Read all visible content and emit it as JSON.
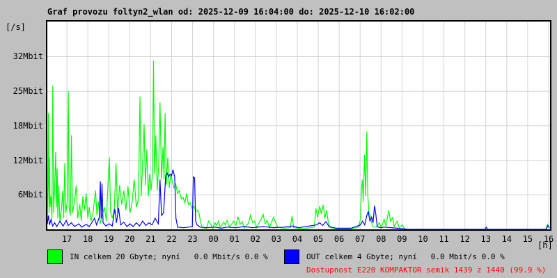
{
  "window": {
    "background": "#c0c0c0"
  },
  "title": "Graf provozu foltyn2_wlan od: 2025-12-09 16:04:00 do: 2025-12-10 16:02:00",
  "y_unit_label": "[/s]",
  "x_unit_label": "[h]",
  "legend": {
    "in": {
      "label": "IN celkem 20 Gbyte; nyní   0.0 Mbit/s 0.0 %",
      "color": "#00ff00"
    },
    "out": {
      "label": "OUT celkem 4 Gbyte; nyní   0.0 Mbit/s 0.0 %",
      "color": "#0000ff"
    },
    "availability": {
      "text": "Dostupnost E220 KOMPAKTOR semik 1439 z 1440 (99.9 %)",
      "color": "#ff0000"
    }
  },
  "chart_data": {
    "type": "line",
    "title": "Graf provozu foltyn2_wlan",
    "x_start": "2025-12-09 16:04:00",
    "x_end": "2025-12-10 16:02:00",
    "x_span_hours": 24,
    "x_first_tick_offset_hours": 0.933,
    "x_tick_labels": [
      "17",
      "18",
      "19",
      "20",
      "21",
      "22",
      "23",
      "00",
      "01",
      "02",
      "03",
      "04",
      "05",
      "06",
      "07",
      "08",
      "09",
      "10",
      "11",
      "12",
      "13",
      "14",
      "15",
      "16"
    ],
    "xlabel": "[h]",
    "ylabel": "[/s]",
    "ylim": [
      0,
      37.6
    ],
    "y_ticks": [
      {
        "label": "6Mbit",
        "value": 6.25
      },
      {
        "label": "12Mbit",
        "value": 12.5
      },
      {
        "label": "18Mbit",
        "value": 18.75
      },
      {
        "label": "25Mbit",
        "value": 25
      },
      {
        "label": "32Mbit",
        "value": 31.25
      }
    ],
    "grid": true,
    "plot_bg": "#ffffff",
    "grid_color": "#d4d4d4",
    "border_color": "#000000",
    "unit": "Mbit/s",
    "x_unit_note": "hours since 16:04",
    "series": [
      {
        "name": "IN",
        "color": "#00ff00",
        "points": [
          [
            0.0,
            2
          ],
          [
            0.03,
            8
          ],
          [
            0.05,
            21
          ],
          [
            0.08,
            3
          ],
          [
            0.1,
            13
          ],
          [
            0.13,
            4
          ],
          [
            0.17,
            6
          ],
          [
            0.22,
            2
          ],
          [
            0.26,
            26
          ],
          [
            0.3,
            3
          ],
          [
            0.36,
            9
          ],
          [
            0.4,
            14
          ],
          [
            0.44,
            4
          ],
          [
            0.47,
            11
          ],
          [
            0.5,
            2
          ],
          [
            0.55,
            8
          ],
          [
            0.6,
            1.2
          ],
          [
            0.68,
            4
          ],
          [
            0.73,
            7
          ],
          [
            0.78,
            2
          ],
          [
            0.83,
            12
          ],
          [
            0.88,
            3
          ],
          [
            0.95,
            5
          ],
          [
            1.0,
            25
          ],
          [
            1.04,
            4
          ],
          [
            1.1,
            2.5
          ],
          [
            1.15,
            17
          ],
          [
            1.2,
            3
          ],
          [
            1.3,
            5
          ],
          [
            1.38,
            8
          ],
          [
            1.45,
            2
          ],
          [
            1.55,
            4.5
          ],
          [
            1.62,
            1.5
          ],
          [
            1.7,
            6
          ],
          [
            1.78,
            3.5
          ],
          [
            1.85,
            6.5
          ],
          [
            1.93,
            2
          ],
          [
            2.0,
            4
          ],
          [
            2.08,
            1.5
          ],
          [
            2.18,
            3
          ],
          [
            2.3,
            7
          ],
          [
            2.37,
            2.5
          ],
          [
            2.44,
            5
          ],
          [
            2.52,
            1
          ],
          [
            2.62,
            2.5
          ],
          [
            2.72,
            4
          ],
          [
            2.82,
            1.5
          ],
          [
            2.9,
            8.5
          ],
          [
            2.96,
            13
          ],
          [
            3.02,
            3
          ],
          [
            3.1,
            2
          ],
          [
            3.2,
            4
          ],
          [
            3.28,
            12
          ],
          [
            3.35,
            3
          ],
          [
            3.45,
            8
          ],
          [
            3.55,
            4.5
          ],
          [
            3.65,
            7
          ],
          [
            3.75,
            3.5
          ],
          [
            3.85,
            7.8
          ],
          [
            3.95,
            3
          ],
          [
            4.05,
            5
          ],
          [
            4.15,
            9
          ],
          [
            4.25,
            4
          ],
          [
            4.35,
            5.5
          ],
          [
            4.42,
            24
          ],
          [
            4.48,
            6
          ],
          [
            4.55,
            12
          ],
          [
            4.62,
            19
          ],
          [
            4.68,
            8
          ],
          [
            4.75,
            14.5
          ],
          [
            4.82,
            6
          ],
          [
            4.88,
            10
          ],
          [
            4.95,
            7
          ],
          [
            5.02,
            10
          ],
          [
            5.07,
            30.5
          ],
          [
            5.12,
            10
          ],
          [
            5.18,
            17
          ],
          [
            5.25,
            7
          ],
          [
            5.32,
            12
          ],
          [
            5.38,
            23
          ],
          [
            5.45,
            9
          ],
          [
            5.52,
            15
          ],
          [
            5.57,
            9
          ],
          [
            5.62,
            21
          ],
          [
            5.68,
            8
          ],
          [
            5.75,
            13
          ],
          [
            5.82,
            7.5
          ],
          [
            5.9,
            10
          ],
          [
            5.97,
            8.5
          ],
          [
            6.05,
            7.5
          ],
          [
            6.13,
            8.2
          ],
          [
            6.22,
            6.5
          ],
          [
            6.3,
            7
          ],
          [
            6.4,
            5.5
          ],
          [
            6.48,
            5.8
          ],
          [
            6.57,
            4.8
          ],
          [
            6.65,
            6.5
          ],
          [
            6.73,
            4.5
          ],
          [
            6.82,
            4.8
          ],
          [
            6.9,
            3.8
          ],
          [
            7.0,
            4.2
          ],
          [
            7.08,
            3.2
          ],
          [
            7.17,
            3.5
          ],
          [
            7.25,
            2.8
          ],
          [
            7.32,
            1.2
          ],
          [
            7.4,
            0.3
          ],
          [
            7.6,
            0.2
          ],
          [
            7.7,
            1.5
          ],
          [
            7.8,
            0.9
          ],
          [
            7.9,
            0.2
          ],
          [
            8.0,
            1.2
          ],
          [
            8.08,
            0.7
          ],
          [
            8.17,
            1.5
          ],
          [
            8.25,
            0.3
          ],
          [
            8.42,
            1.3
          ],
          [
            8.5,
            0.8
          ],
          [
            8.58,
            1.6
          ],
          [
            8.7,
            0.4
          ],
          [
            8.9,
            1.5
          ],
          [
            9.0,
            0.7
          ],
          [
            9.1,
            2.3
          ],
          [
            9.2,
            0.9
          ],
          [
            9.3,
            1.4
          ],
          [
            9.4,
            0.2
          ],
          [
            9.6,
            1.1
          ],
          [
            9.7,
            2.6
          ],
          [
            9.8,
            1.2
          ],
          [
            9.9,
            1.5
          ],
          [
            10.0,
            0.3
          ],
          [
            10.2,
            1.8
          ],
          [
            10.3,
            2.7
          ],
          [
            10.4,
            1.0
          ],
          [
            10.5,
            1.6
          ],
          [
            10.6,
            0.3
          ],
          [
            10.8,
            2.2
          ],
          [
            10.9,
            1.2
          ],
          [
            11.0,
            0.4
          ],
          [
            11.3,
            0.2
          ],
          [
            11.6,
            0.3
          ],
          [
            11.68,
            2.4
          ],
          [
            11.76,
            0.3
          ],
          [
            12.2,
            0.1
          ],
          [
            12.75,
            0.4
          ],
          [
            12.82,
            3.8
          ],
          [
            12.9,
            2.2
          ],
          [
            13.0,
            4.2
          ],
          [
            13.08,
            2.8
          ],
          [
            13.17,
            4.4
          ],
          [
            13.25,
            2.0
          ],
          [
            13.33,
            3.5
          ],
          [
            13.42,
            1.2
          ],
          [
            13.5,
            0.3
          ],
          [
            13.8,
            0.1
          ],
          [
            14.5,
            0.1
          ],
          [
            14.88,
            0.4
          ],
          [
            14.95,
            2.0
          ],
          [
            15.0,
            7.5
          ],
          [
            15.04,
            9.0
          ],
          [
            15.08,
            5.0
          ],
          [
            15.14,
            13.5
          ],
          [
            15.2,
            6.0
          ],
          [
            15.25,
            17.7
          ],
          [
            15.3,
            6.0
          ],
          [
            15.36,
            3.0
          ],
          [
            15.44,
            2.2
          ],
          [
            15.52,
            0.5
          ],
          [
            15.7,
            0.4
          ],
          [
            15.85,
            1.2
          ],
          [
            15.95,
            0.3
          ],
          [
            16.08,
            1.8
          ],
          [
            16.16,
            0.6
          ],
          [
            16.3,
            3.4
          ],
          [
            16.38,
            1.5
          ],
          [
            16.48,
            2.1
          ],
          [
            16.56,
            0.5
          ],
          [
            16.7,
            1.5
          ],
          [
            16.8,
            0.3
          ],
          [
            16.95,
            0.8
          ],
          [
            17.05,
            0.1
          ],
          [
            17.2,
            0
          ],
          [
            23.8,
            0
          ],
          [
            23.88,
            0.9
          ],
          [
            23.97,
            0.2
          ]
        ]
      },
      {
        "name": "OUT",
        "color": "#0000ff",
        "points": [
          [
            0.0,
            1.0
          ],
          [
            0.05,
            2.5
          ],
          [
            0.1,
            0.8
          ],
          [
            0.18,
            1.8
          ],
          [
            0.25,
            0.6
          ],
          [
            0.35,
            1.2
          ],
          [
            0.45,
            0.5
          ],
          [
            0.6,
            1.5
          ],
          [
            0.75,
            0.6
          ],
          [
            0.9,
            1.6
          ],
          [
            1.0,
            0.7
          ],
          [
            1.15,
            1.2
          ],
          [
            1.3,
            0.5
          ],
          [
            1.5,
            1.0
          ],
          [
            1.65,
            0.4
          ],
          [
            1.85,
            0.9
          ],
          [
            2.0,
            0.5
          ],
          [
            2.15,
            1.4
          ],
          [
            2.25,
            2.0
          ],
          [
            2.35,
            0.8
          ],
          [
            2.48,
            2.2
          ],
          [
            2.53,
            8.7
          ],
          [
            2.57,
            2.0
          ],
          [
            2.61,
            8.3
          ],
          [
            2.66,
            1.2
          ],
          [
            2.8,
            0.6
          ],
          [
            2.95,
            1.0
          ],
          [
            3.1,
            0.6
          ],
          [
            3.22,
            3.7
          ],
          [
            3.3,
            1.2
          ],
          [
            3.4,
            3.9
          ],
          [
            3.5,
            0.8
          ],
          [
            3.65,
            1.3
          ],
          [
            3.8,
            0.5
          ],
          [
            3.95,
            1.0
          ],
          [
            4.1,
            0.5
          ],
          [
            4.25,
            1.2
          ],
          [
            4.4,
            0.6
          ],
          [
            4.55,
            1.5
          ],
          [
            4.7,
            0.7
          ],
          [
            4.85,
            1.2
          ],
          [
            5.0,
            0.8
          ],
          [
            5.15,
            2.0
          ],
          [
            5.3,
            1.0
          ],
          [
            5.38,
            9.0
          ],
          [
            5.45,
            2.5
          ],
          [
            5.55,
            3.0
          ],
          [
            5.65,
            9.8
          ],
          [
            5.72,
            10.2
          ],
          [
            5.79,
            9.5
          ],
          [
            5.86,
            10.0
          ],
          [
            5.93,
            9.7
          ],
          [
            6.0,
            10.8
          ],
          [
            6.08,
            9.5
          ],
          [
            6.14,
            2.0
          ],
          [
            6.22,
            0.4
          ],
          [
            6.5,
            0.3
          ],
          [
            6.75,
            0.4
          ],
          [
            6.92,
            0.5
          ],
          [
            6.97,
            9.5
          ],
          [
            7.03,
            9.3
          ],
          [
            7.08,
            1.5
          ],
          [
            7.15,
            0.8
          ],
          [
            7.3,
            0.4
          ],
          [
            7.6,
            0.3
          ],
          [
            8.0,
            0.4
          ],
          [
            8.3,
            0.2
          ],
          [
            8.6,
            0.4
          ],
          [
            9.0,
            0.3
          ],
          [
            9.4,
            0.5
          ],
          [
            9.8,
            0.3
          ],
          [
            10.3,
            0.5
          ],
          [
            10.8,
            0.3
          ],
          [
            11.3,
            0.4
          ],
          [
            11.7,
            0.6
          ],
          [
            12.0,
            0.3
          ],
          [
            12.85,
            0.8
          ],
          [
            13.0,
            1.2
          ],
          [
            13.15,
            0.7
          ],
          [
            13.3,
            1.4
          ],
          [
            13.45,
            0.5
          ],
          [
            13.8,
            0.2
          ],
          [
            14.5,
            0.2
          ],
          [
            14.95,
            0.8
          ],
          [
            15.05,
            1.5
          ],
          [
            15.15,
            0.8
          ],
          [
            15.25,
            2.5
          ],
          [
            15.32,
            3.2
          ],
          [
            15.4,
            1.5
          ],
          [
            15.48,
            2.2
          ],
          [
            15.55,
            1.2
          ],
          [
            15.62,
            4.3
          ],
          [
            15.68,
            2.8
          ],
          [
            15.75,
            0.5
          ],
          [
            15.9,
            0.3
          ],
          [
            16.1,
            0.4
          ],
          [
            16.4,
            0.3
          ],
          [
            16.7,
            0.2
          ],
          [
            17.0,
            0.1
          ],
          [
            17.2,
            0
          ],
          [
            20.9,
            0
          ],
          [
            20.95,
            0.4
          ],
          [
            21.02,
            0
          ],
          [
            23.82,
            0
          ],
          [
            23.9,
            0.7
          ],
          [
            23.97,
            0.3
          ]
        ]
      }
    ],
    "legend_position": "bottom"
  }
}
